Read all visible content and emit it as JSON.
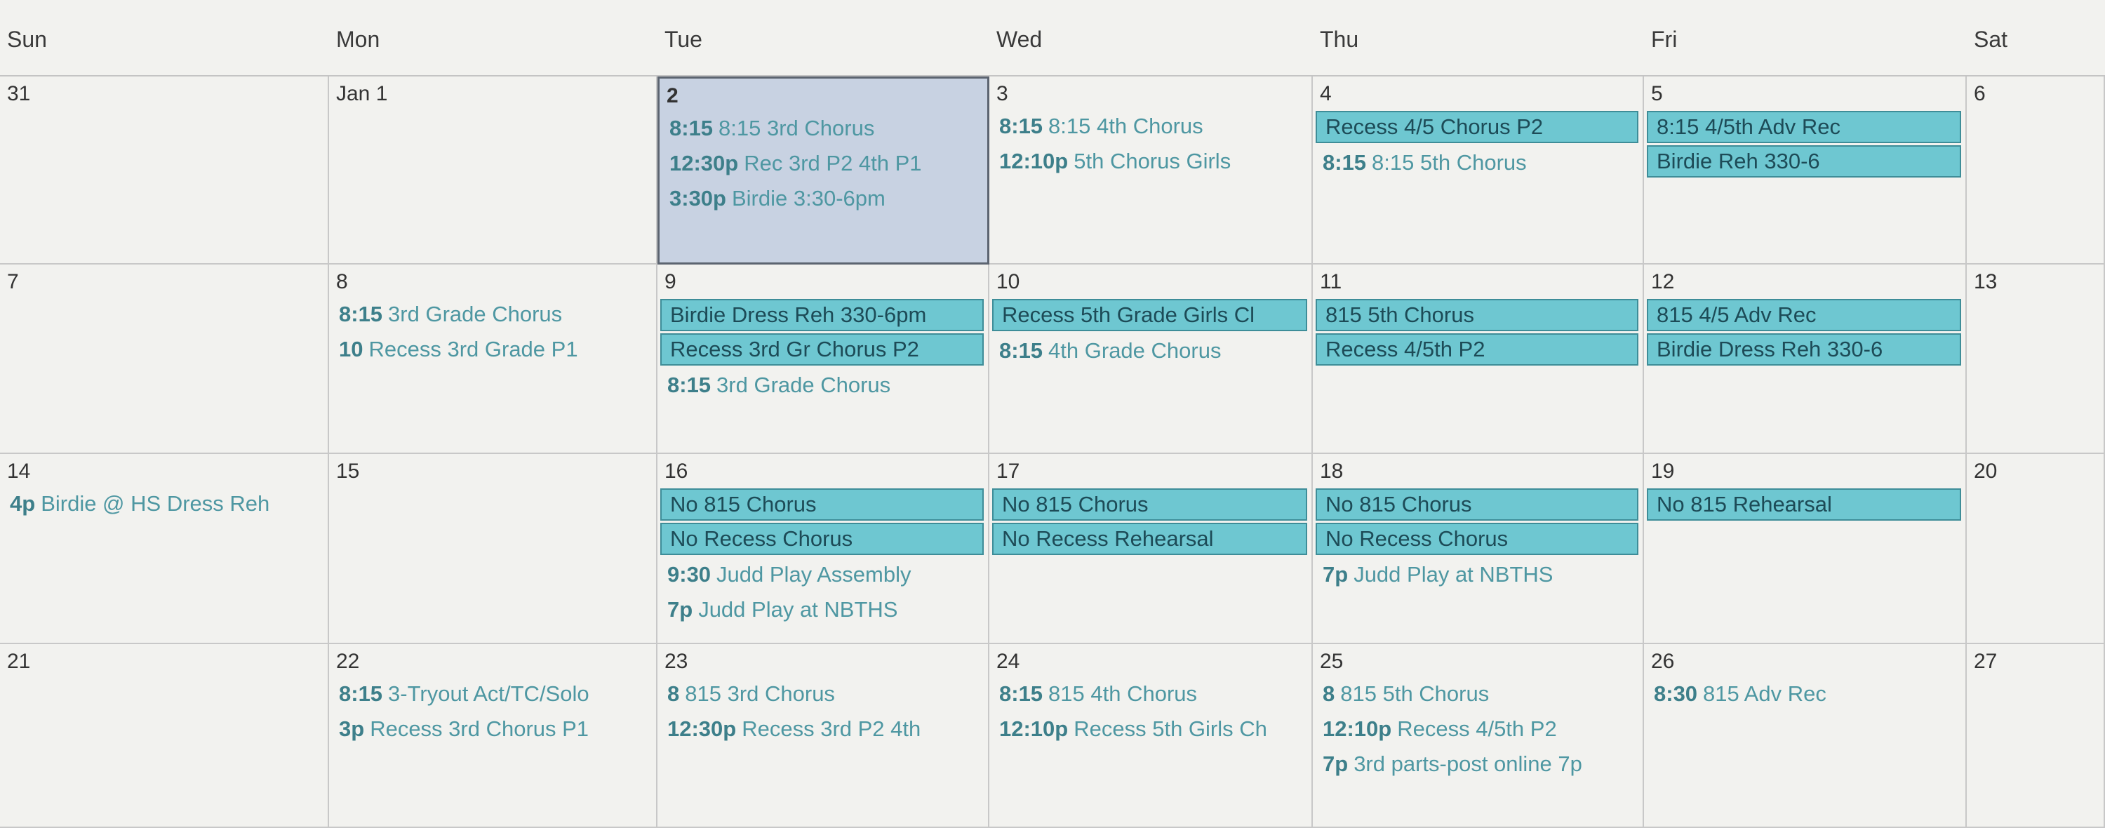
{
  "header": {
    "days": [
      "Sun",
      "Mon",
      "Tue",
      "Wed",
      "Thu",
      "Fri",
      "Sat"
    ]
  },
  "weeks": [
    {
      "days": [
        {
          "date": "31",
          "events": []
        },
        {
          "date": "Jan 1",
          "events": []
        },
        {
          "date": "2",
          "selected": true,
          "events": [
            {
              "time": "8:15",
              "title": "8:15 3rd Chorus"
            },
            {
              "time": "12:30p",
              "title": "Rec 3rd P2 4th P1"
            },
            {
              "time": "3:30p",
              "title": "Birdie 3:30-6pm"
            }
          ]
        },
        {
          "date": "3",
          "events": [
            {
              "time": "8:15",
              "title": "8:15 4th Chorus"
            },
            {
              "time": "12:10p",
              "title": "5th Chorus Girls"
            }
          ]
        },
        {
          "date": "4",
          "events": [
            {
              "title": "Recess 4/5 Chorus P2",
              "boxed": true
            },
            {
              "time": "8:15",
              "title": "8:15 5th Chorus"
            }
          ]
        },
        {
          "date": "5",
          "events": [
            {
              "title": "8:15 4/5th Adv Rec",
              "boxed": true
            },
            {
              "title": "Birdie Reh 330-6",
              "boxed": true
            }
          ]
        },
        {
          "date": "6",
          "events": []
        }
      ]
    },
    {
      "days": [
        {
          "date": "7",
          "events": []
        },
        {
          "date": "8",
          "events": [
            {
              "time": "8:15",
              "title": "3rd Grade Chorus"
            },
            {
              "time": "10",
              "title": "Recess 3rd Grade P1"
            }
          ]
        },
        {
          "date": "9",
          "events": [
            {
              "title": "Birdie Dress Reh 330-6pm",
              "boxed": true
            },
            {
              "title": "Recess 3rd Gr Chorus P2",
              "boxed": true
            },
            {
              "time": "8:15",
              "title": "3rd Grade Chorus"
            }
          ]
        },
        {
          "date": "10",
          "events": [
            {
              "title": "Recess 5th Grade Girls Cl",
              "boxed": true
            },
            {
              "time": "8:15",
              "title": "4th Grade Chorus"
            }
          ]
        },
        {
          "date": "11",
          "events": [
            {
              "title": "815 5th Chorus",
              "boxed": true
            },
            {
              "title": "Recess 4/5th P2",
              "boxed": true
            }
          ]
        },
        {
          "date": "12",
          "events": [
            {
              "title": "815 4/5 Adv Rec",
              "boxed": true
            },
            {
              "title": "Birdie Dress Reh 330-6",
              "boxed": true
            }
          ]
        },
        {
          "date": "13",
          "events": []
        }
      ]
    },
    {
      "days": [
        {
          "date": "14",
          "events": [
            {
              "time": "4p",
              "title": "Birdie @ HS Dress Reh"
            }
          ]
        },
        {
          "date": "15",
          "events": []
        },
        {
          "date": "16",
          "events": [
            {
              "title": "No 815 Chorus",
              "boxed": true
            },
            {
              "title": "No Recess Chorus",
              "boxed": true
            },
            {
              "time": "9:30",
              "title": "Judd Play Assembly"
            },
            {
              "time": "7p",
              "title": "Judd Play at NBTHS"
            }
          ]
        },
        {
          "date": "17",
          "events": [
            {
              "title": "No 815 Chorus",
              "boxed": true
            },
            {
              "title": "No Recess Rehearsal",
              "boxed": true
            }
          ]
        },
        {
          "date": "18",
          "events": [
            {
              "title": "No 815 Chorus",
              "boxed": true
            },
            {
              "title": "No Recess Chorus",
              "boxed": true
            },
            {
              "time": "7p",
              "title": "Judd Play at NBTHS"
            }
          ]
        },
        {
          "date": "19",
          "events": [
            {
              "title": "No 815 Rehearsal",
              "boxed": true
            }
          ]
        },
        {
          "date": "20",
          "events": []
        }
      ]
    },
    {
      "days": [
        {
          "date": "21",
          "events": []
        },
        {
          "date": "22",
          "events": [
            {
              "time": "8:15",
              "title": "3-Tryout Act/TC/Solo"
            },
            {
              "time": "3p",
              "title": "Recess 3rd Chorus P1"
            }
          ]
        },
        {
          "date": "23",
          "events": [
            {
              "time": "8",
              "title": "815 3rd Chorus"
            },
            {
              "time": "12:30p",
              "title": "Recess 3rd P2 4th"
            }
          ]
        },
        {
          "date": "24",
          "events": [
            {
              "time": "8:15",
              "title": "815 4th Chorus"
            },
            {
              "time": "12:10p",
              "title": "Recess 5th Girls Ch"
            }
          ]
        },
        {
          "date": "25",
          "events": [
            {
              "time": "8",
              "title": "815 5th Chorus"
            },
            {
              "time": "12:10p",
              "title": "Recess 4/5th P2"
            },
            {
              "time": "7p",
              "title": "3rd parts-post online 7p"
            }
          ]
        },
        {
          "date": "26",
          "events": [
            {
              "time": "8:30",
              "title": "815 Adv Rec"
            }
          ]
        },
        {
          "date": "27",
          "events": []
        }
      ]
    }
  ]
}
